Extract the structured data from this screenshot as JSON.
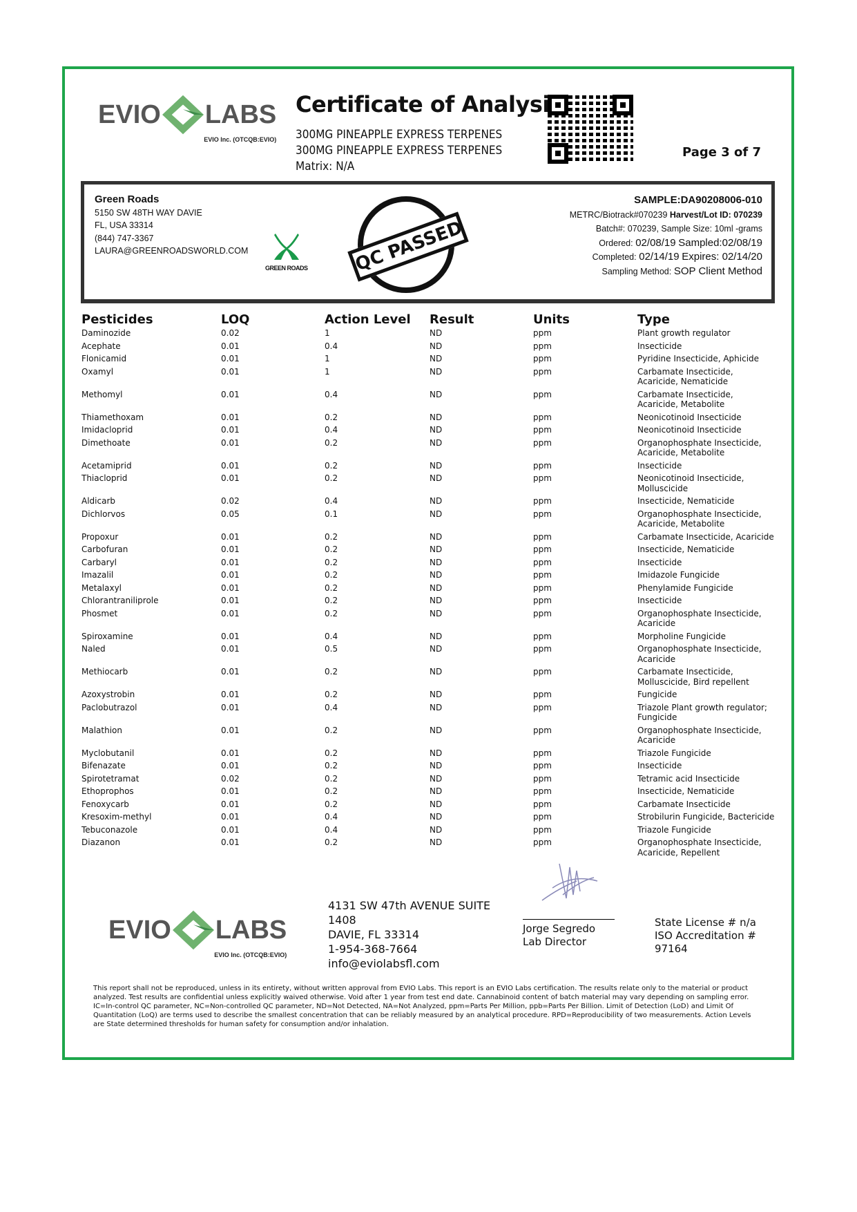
{
  "header": {
    "logo_text_left": "EVIO",
    "logo_text_right": "LABS",
    "logo_sub": "EVIO Inc. (OTCQB:EVIO)",
    "title": "Certificate of Analysis",
    "product_lines": [
      "300MG PINEAPPLE EXPRESS TERPENES",
      "300MG PINEAPPLE EXPRESS TERPENES",
      "Matrix: N/A"
    ],
    "page": "Page 3 of 7"
  },
  "client": {
    "name": "Green Roads",
    "address1": "5150 SW 48TH WAY DAVIE",
    "address2": "FL, USA 33314",
    "phone": "(844) 747-3367",
    "email": "LAURA@GREENROADSWORLD.COM",
    "logo_text": "GREEN ROADS"
  },
  "stamp": {
    "text": "QC PASSED"
  },
  "sample": {
    "id": "SAMPLE:DA90208006-010",
    "metrc": "METRC/Biotrack#070239",
    "harvest": "Harvest/Lot ID: 070239",
    "batch": "Batch#: 070239, Sample Size: 10ml -grams",
    "ordered_label": "Ordered:",
    "ordered": "02/08/19",
    "sampled": "Sampled:02/08/19",
    "completed_label": "Completed:",
    "completed": "02/14/19",
    "expires": "Expires: 02/14/20",
    "method_label": "Sampling Method:",
    "method": "SOP Client Method"
  },
  "table": {
    "headers": [
      "Pesticides",
      "LOQ",
      "Action Level",
      "Result",
      "Units",
      "Type"
    ],
    "rows": [
      [
        "Daminozide",
        "0.02",
        "1",
        "ND",
        "ppm",
        "Plant growth regulator"
      ],
      [
        "Acephate",
        "0.01",
        "0.4",
        "ND",
        "ppm",
        "Insecticide"
      ],
      [
        "Flonicamid",
        "0.01",
        "1",
        "ND",
        "ppm",
        "Pyridine Insecticide, Aphicide"
      ],
      [
        "Oxamyl",
        "0.01",
        "1",
        "ND",
        "ppm",
        "Carbamate Insecticide, Acaricide, Nematicide"
      ],
      [
        "Methomyl",
        "0.01",
        "0.4",
        "ND",
        "ppm",
        "Carbamate Insecticide, Acaricide, Metabolite"
      ],
      [
        "Thiamethoxam",
        "0.01",
        "0.2",
        "ND",
        "ppm",
        "Neonicotinoid Insecticide"
      ],
      [
        "Imidacloprid",
        "0.01",
        "0.4",
        "ND",
        "ppm",
        "Neonicotinoid Insecticide"
      ],
      [
        "Dimethoate",
        "0.01",
        "0.2",
        "ND",
        "ppm",
        "Organophosphate Insecticide, Acaricide, Metabolite"
      ],
      [
        "Acetamiprid",
        "0.01",
        "0.2",
        "ND",
        "ppm",
        "Insecticide"
      ],
      [
        "Thiacloprid",
        "0.01",
        "0.2",
        "ND",
        "ppm",
        "Neonicotinoid Insecticide, Molluscicide"
      ],
      [
        "Aldicarb",
        "0.02",
        "0.4",
        "ND",
        "ppm",
        "Insecticide, Nematicide"
      ],
      [
        "Dichlorvos",
        "0.05",
        "0.1",
        "ND",
        "ppm",
        "Organophosphate Insecticide, Acaricide, Metabolite"
      ],
      [
        "Propoxur",
        "0.01",
        "0.2",
        "ND",
        "ppm",
        "Carbamate Insecticide, Acaricide"
      ],
      [
        "Carbofuran",
        "0.01",
        "0.2",
        "ND",
        "ppm",
        "Insecticide, Nematicide"
      ],
      [
        "Carbaryl",
        "0.01",
        "0.2",
        "ND",
        "ppm",
        "Insecticide"
      ],
      [
        "Imazalil",
        "0.01",
        "0.2",
        "ND",
        "ppm",
        "Imidazole Fungicide"
      ],
      [
        "Metalaxyl",
        "0.01",
        "0.2",
        "ND",
        "ppm",
        "Phenylamide Fungicide"
      ],
      [
        "Chlorantraniliprole",
        "0.01",
        "0.2",
        "ND",
        "ppm",
        "Insecticide"
      ],
      [
        "Phosmet",
        "0.01",
        "0.2",
        "ND",
        "ppm",
        "Organophosphate Insecticide, Acaricide"
      ],
      [
        "Spiroxamine",
        "0.01",
        "0.4",
        "ND",
        "ppm",
        "Morpholine Fungicide"
      ],
      [
        "Naled",
        "0.01",
        "0.5",
        "ND",
        "ppm",
        "Organophosphate Insecticide, Acaricide"
      ],
      [
        "Methiocarb",
        "0.01",
        "0.2",
        "ND",
        "ppm",
        "Carbamate Insecticide, Molluscicide, Bird repellent"
      ],
      [
        "Azoxystrobin",
        "0.01",
        "0.2",
        "ND",
        "ppm",
        "Fungicide"
      ],
      [
        "Paclobutrazol",
        "0.01",
        "0.4",
        "ND",
        "ppm",
        "Triazole Plant growth regulator; Fungicide"
      ],
      [
        "Malathion",
        "0.01",
        "0.2",
        "ND",
        "ppm",
        "Organophosphate Insecticide, Acaricide"
      ],
      [
        "Myclobutanil",
        "0.01",
        "0.2",
        "ND",
        "ppm",
        "Triazole Fungicide"
      ],
      [
        "Bifenazate",
        "0.01",
        "0.2",
        "ND",
        "ppm",
        "Insecticide"
      ],
      [
        "Spirotetramat",
        "0.02",
        "0.2",
        "ND",
        "ppm",
        "Tetramic acid Insecticide"
      ],
      [
        "Ethoprophos",
        "0.01",
        "0.2",
        "ND",
        "ppm",
        "Insecticide, Nematicide"
      ],
      [
        "Fenoxycarb",
        "0.01",
        "0.2",
        "ND",
        "ppm",
        "Carbamate Insecticide"
      ],
      [
        "Kresoxim-methyl",
        "0.01",
        "0.4",
        "ND",
        "ppm",
        "Strobilurin Fungicide, Bactericide"
      ],
      [
        "Tebuconazole",
        "0.01",
        "0.4",
        "ND",
        "ppm",
        "Triazole Fungicide"
      ],
      [
        "Diazanon",
        "0.01",
        "0.2",
        "ND",
        "ppm",
        "Organophosphate Insecticide, Acaricide, Repellent"
      ]
    ]
  },
  "footer": {
    "address_lines": [
      "4131 SW 47th AVENUE SUITE",
      "1408",
      "DAVIE, FL 33314",
      "1-954-368-7664",
      "info@eviolabsfl.com"
    ],
    "signer": "Jorge Segredo",
    "signer_title": "Lab Director",
    "license_lines": [
      "State License # n/a",
      "ISO Accreditation #",
      "97164"
    ],
    "disclaimer": "This report shall not be reproduced, unless in its entirety, without written approval from EVIO Labs. This report is an EVIO Labs certification. The results relate only to the material or product analyzed. Test results are confidential unless explicitly waived otherwise. Void after 1 year from test end date. Cannabinoid content of batch material may vary depending on sampling error. IC=In-control QC parameter, NC=Non-controlled QC parameter, ND=Not Detected, NA=Not Analyzed, ppm=Parts Per Million, ppb=Parts Per Billion. Limit of Detection (LoD) and Limit Of Quantitation (LoQ) are terms used to describe the smallest concentration that can be reliably measured by an analytical procedure. RPD=Reproducibility of two measurements. Action Levels are State determined thresholds for human safety for consumption and/or inhalation."
  },
  "colors": {
    "border": "#1ea64b",
    "logo_green": "#6fb26f",
    "logo_gray": "#555555"
  }
}
